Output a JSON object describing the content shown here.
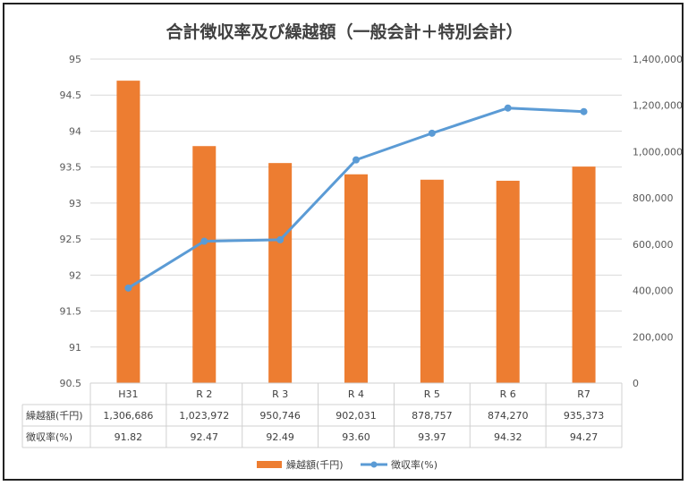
{
  "chart_data": {
    "type": "bar+line",
    "title": "合計徴収率及び繰越額（一般会計＋特別会計）",
    "categories": [
      "H31",
      "R 2",
      "R 3",
      "R 4",
      "R 5",
      "R 6",
      "R7"
    ],
    "bar_series": {
      "name": "繰越額(千円)",
      "values": [
        1306686,
        1023972,
        950746,
        902031,
        878757,
        874270,
        935373
      ],
      "value_labels": [
        "1,306,686",
        "1,023,972",
        "950,746",
        "902,031",
        "878,757",
        "874,270",
        "935,373"
      ],
      "color": "#ED7D31",
      "axis": "right",
      "axis_range": [
        0,
        1400000
      ],
      "axis_ticks": [
        "0",
        "200,000",
        "400,000",
        "600,000",
        "800,000",
        "1,000,000",
        "1,200,000",
        "1,400,000"
      ]
    },
    "line_series": {
      "name": "徴収率(%)",
      "values": [
        91.82,
        92.47,
        92.49,
        93.6,
        93.97,
        94.32,
        94.27
      ],
      "value_labels": [
        "91.82",
        "92.47",
        "92.49",
        "93.60",
        "93.97",
        "94.32",
        "94.27"
      ],
      "color": "#5B9BD5",
      "axis": "left",
      "axis_range": [
        90.5,
        95
      ],
      "axis_ticks": [
        "90.5",
        "91",
        "91.5",
        "92",
        "92.5",
        "93",
        "93.5",
        "94",
        "94.5",
        "95"
      ]
    },
    "legend_position": "bottom",
    "grid": true,
    "data_table": true
  }
}
